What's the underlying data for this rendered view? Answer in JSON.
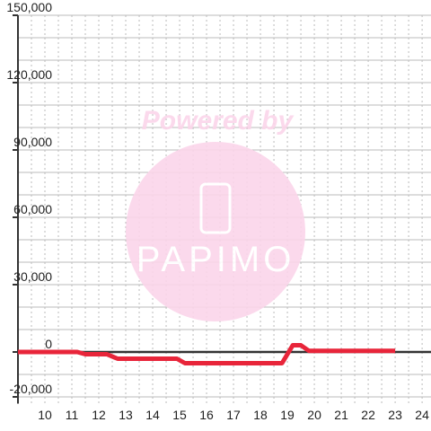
{
  "chart_data": {
    "type": "line",
    "x": [
      9,
      11.2,
      11.5,
      12.3,
      12.7,
      14.9,
      15.2,
      18.8,
      19.2,
      19.5,
      19.8,
      23
    ],
    "series": [
      {
        "color": "#e8253a",
        "values": [
          0,
          0,
          -1000,
          -1000,
          -3000,
          -3000,
          -5000,
          -5000,
          3000,
          3000,
          500,
          500
        ]
      }
    ],
    "xlim": [
      9,
      24.33
    ],
    "xticks": [
      10,
      11,
      12,
      13,
      14,
      15,
      16,
      17,
      18,
      19,
      20,
      21,
      22,
      23,
      24
    ],
    "ylim": [
      -23000,
      150000
    ],
    "yticks": [
      {
        "value": 150000,
        "label": "150,000"
      },
      {
        "value": 120000,
        "label": "120,000"
      },
      {
        "value": 90000,
        "label": "90,000"
      },
      {
        "value": 60000,
        "label": "60,000"
      },
      {
        "value": 30000,
        "label": "30,000"
      },
      0,
      {
        "value": -20000,
        "label": "-20,000"
      }
    ],
    "ygrid": [
      -20000,
      -10000,
      10000,
      20000,
      30000,
      40000,
      50000,
      60000,
      70000,
      80000,
      90000,
      100000,
      110000,
      120000,
      130000,
      140000,
      150000
    ],
    "xgrid": [
      9.5,
      10,
      10.5,
      11,
      11.5,
      12,
      12.5,
      13,
      13.5,
      14,
      14.5,
      15,
      15.5,
      16,
      16.5,
      17,
      17.5,
      18,
      18.5,
      19,
      19.5,
      20,
      20.5,
      21,
      21.5,
      22,
      22.5,
      23,
      23.5,
      24
    ],
    "watermark": {
      "line1": "Powered by",
      "line2": "PAPIMO"
    }
  }
}
